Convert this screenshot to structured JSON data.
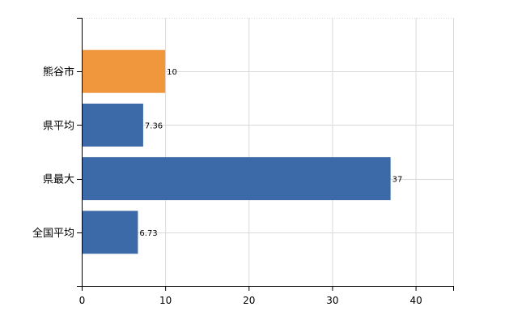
{
  "chart_data": {
    "type": "bar",
    "orientation": "horizontal",
    "categories": [
      "熊谷市",
      "県平均",
      "県最大",
      "全国平均"
    ],
    "values": [
      10,
      7.36,
      37,
      6.73
    ],
    "value_labels": [
      "10",
      "7.36",
      "37",
      "6.73"
    ],
    "xlim": [
      0,
      44.5
    ],
    "xticks": [
      0,
      10,
      20,
      30,
      40
    ],
    "xtick_labels": [
      "0",
      "10",
      "20",
      "30",
      "40"
    ],
    "grid": true,
    "colors": {
      "highlight": "#f0963c",
      "default": "#3c6aa8",
      "grid": "#d9d9d9",
      "axis": "#000000"
    },
    "highlight_index": 0
  }
}
